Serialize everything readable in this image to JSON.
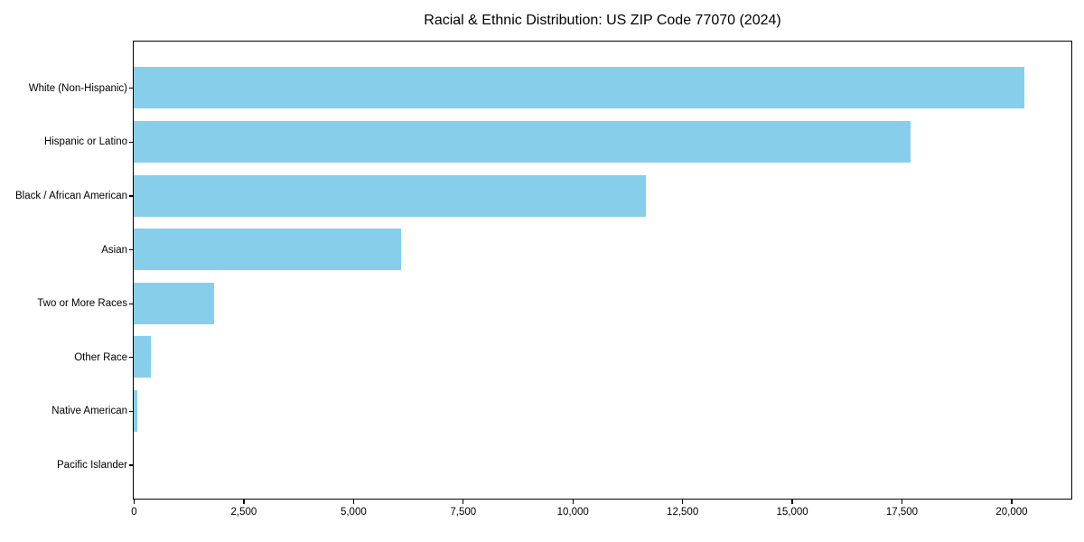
{
  "chart_data": {
    "type": "bar",
    "orientation": "horizontal",
    "title": "Racial & Ethnic Distribution: US ZIP Code 77070 (2024)",
    "categories": [
      "White (Non-Hispanic)",
      "Hispanic or Latino",
      "Black / African American",
      "Asian",
      "Two or More Races",
      "Other Race",
      "Native American",
      "Pacific Islander"
    ],
    "values": [
      20300,
      17700,
      11670,
      6100,
      1840,
      400,
      80,
      20
    ],
    "xlabel": "",
    "ylabel": "",
    "xlim": [
      0,
      21350
    ],
    "xticks": [
      0,
      2500,
      5000,
      7500,
      10000,
      12500,
      15000,
      17500,
      20000
    ],
    "xtick_labels": [
      "0",
      "2,500",
      "5,000",
      "7,500",
      "10,000",
      "12,500",
      "15,000",
      "17,500",
      "20,000"
    ],
    "bar_color": "#87CEEB",
    "axis_color": "#000000",
    "text_color": "#000000",
    "grid": false,
    "legend": null
  }
}
